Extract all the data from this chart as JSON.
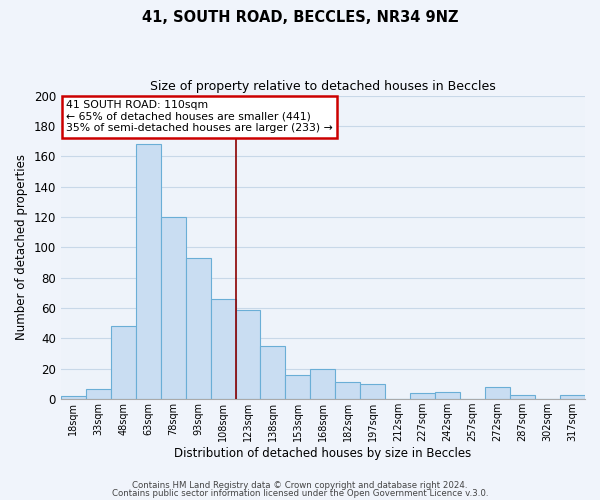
{
  "title": "41, SOUTH ROAD, BECCLES, NR34 9NZ",
  "subtitle": "Size of property relative to detached houses in Beccles",
  "xlabel": "Distribution of detached houses by size in Beccles",
  "ylabel": "Number of detached properties",
  "bar_labels": [
    "18sqm",
    "33sqm",
    "48sqm",
    "63sqm",
    "78sqm",
    "93sqm",
    "108sqm",
    "123sqm",
    "138sqm",
    "153sqm",
    "168sqm",
    "182sqm",
    "197sqm",
    "212sqm",
    "227sqm",
    "242sqm",
    "257sqm",
    "272sqm",
    "287sqm",
    "302sqm",
    "317sqm"
  ],
  "bar_values": [
    2,
    7,
    48,
    168,
    120,
    93,
    66,
    59,
    35,
    16,
    20,
    11,
    10,
    0,
    4,
    5,
    0,
    8,
    3,
    0,
    3
  ],
  "bar_color": "#c9ddf2",
  "bar_edge_color": "#6aaed6",
  "ylim": [
    0,
    200
  ],
  "yticks": [
    0,
    20,
    40,
    60,
    80,
    100,
    120,
    140,
    160,
    180,
    200
  ],
  "vline_x_index": 6.5,
  "vline_color": "#8b0000",
  "annotation_title": "41 SOUTH ROAD: 110sqm",
  "annotation_line1": "← 65% of detached houses are smaller (441)",
  "annotation_line2": "35% of semi-detached houses are larger (233) →",
  "annotation_box_facecolor": "#ffffff",
  "annotation_box_edgecolor": "#cc0000",
  "footer1": "Contains HM Land Registry data © Crown copyright and database right 2024.",
  "footer2": "Contains public sector information licensed under the Open Government Licence v.3.0.",
  "background_color": "#f0f4fb",
  "plot_bg_color": "#eef3fa",
  "grid_color": "#c8d8e8"
}
